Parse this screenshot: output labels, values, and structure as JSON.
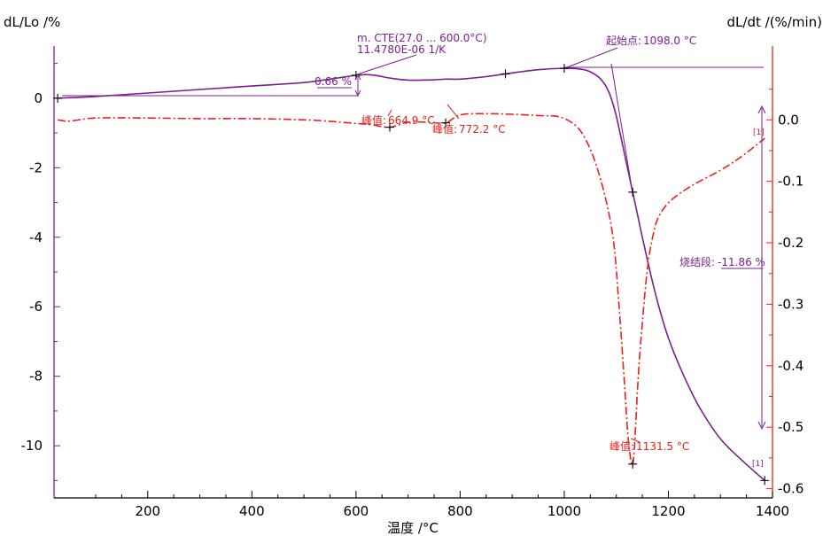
{
  "chart_data": {
    "type": "line",
    "xlabel": "温度 /°C",
    "xlim": [
      20,
      1400
    ],
    "x_ticks": [
      200,
      400,
      600,
      800,
      1000,
      1200,
      1400
    ],
    "y_left": {
      "label": "dL/Lo /%",
      "lim": [
        -11.5,
        1.5
      ],
      "ticks": [
        0,
        -2,
        -4,
        -6,
        -8,
        -10
      ]
    },
    "y_right": {
      "label": "dL/dt /(%/min)",
      "lim": [
        -0.615,
        0.12
      ],
      "ticks": [
        0.0,
        -0.1,
        -0.2,
        -0.3,
        -0.4,
        -0.5,
        -0.6
      ]
    },
    "series": [
      {
        "name": "dL/Lo",
        "axis": "left",
        "color": "#7b1f8f",
        "style": "solid",
        "x": [
          27,
          100,
          200,
          300,
          400,
          500,
          550,
          600,
          620,
          640,
          664.9,
          700,
          750,
          772.2,
          800,
          850,
          887,
          950,
          1000,
          1030,
          1050,
          1070,
          1085,
          1098,
          1110,
          1120,
          1130,
          1140,
          1150,
          1165,
          1180,
          1200,
          1230,
          1260,
          1300,
          1340,
          1385
        ],
        "y": [
          0.0,
          0.05,
          0.15,
          0.25,
          0.35,
          0.45,
          0.55,
          0.66,
          0.68,
          0.65,
          0.58,
          0.52,
          0.53,
          0.55,
          0.55,
          0.62,
          0.7,
          0.82,
          0.86,
          0.84,
          0.76,
          0.55,
          0.2,
          -0.4,
          -1.2,
          -1.9,
          -2.6,
          -3.3,
          -4.0,
          -5.0,
          -5.9,
          -6.9,
          -8.0,
          -8.9,
          -9.8,
          -10.4,
          -11.0
        ]
      },
      {
        "name": "dL/dt",
        "axis": "right",
        "color": "#e8211a",
        "style": "dashdot",
        "x": [
          27,
          50,
          100,
          200,
          300,
          400,
          500,
          560,
          600,
          630,
          664.9,
          700,
          740,
          772.2,
          800,
          850,
          900,
          950,
          990,
          1020,
          1040,
          1060,
          1080,
          1095,
          1105,
          1115,
          1122,
          1128,
          1131.5,
          1135,
          1142,
          1150,
          1160,
          1170,
          1180,
          1200,
          1230,
          1260,
          1300,
          1340,
          1385
        ],
        "y": [
          0.0,
          -0.002,
          0.003,
          0.003,
          0.002,
          0.002,
          0.0,
          -0.003,
          -0.006,
          -0.008,
          -0.012,
          -0.004,
          -0.004,
          -0.005,
          0.008,
          0.01,
          0.009,
          0.007,
          0.005,
          -0.008,
          -0.03,
          -0.07,
          -0.13,
          -0.2,
          -0.3,
          -0.42,
          -0.51,
          -0.555,
          -0.56,
          -0.53,
          -0.42,
          -0.33,
          -0.24,
          -0.19,
          -0.16,
          -0.135,
          -0.115,
          -0.1,
          -0.082,
          -0.06,
          -0.03
        ]
      }
    ],
    "markers": {
      "dL": [
        27,
        600,
        887,
        1000,
        1131.5,
        1385
      ],
      "dt": [
        664.9,
        772.2,
        1131.5
      ]
    },
    "annotations": {
      "cte_line1": "m. CTE(27.0 ... 600.0°C)",
      "cte_line2": "11.4780E-06 1/K",
      "step_value": "0.66 %",
      "peak1_label": "峰值:",
      "peak1_value": "664.9 °C",
      "peak2_label": "峰值:",
      "peak2_value": "772.2 °C",
      "peak3_label": "峰值:",
      "peak3_value": "1131.5 °C",
      "onset_label": "起始点:",
      "onset_value": "1098.0 °C",
      "sinter_label": "烧结段:",
      "sinter_value": "-11.86 %",
      "seg_tag_1": "[1]",
      "seg_tag_2": "[1]"
    }
  }
}
